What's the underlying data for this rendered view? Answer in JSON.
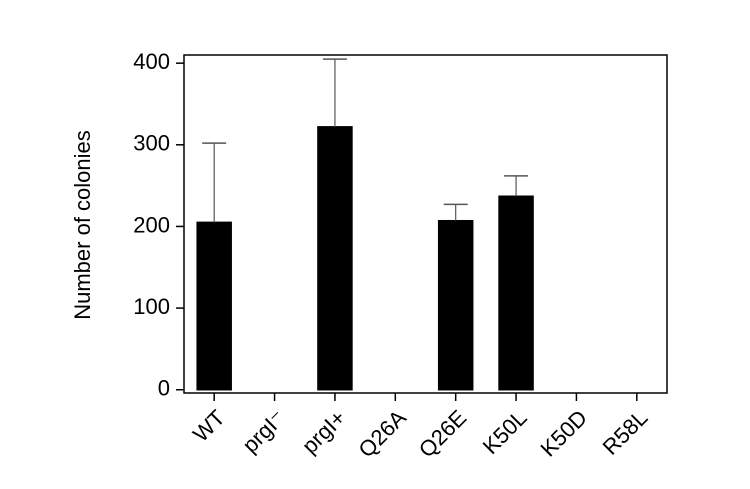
{
  "chart_data": {
    "type": "bar",
    "y_label": "Number of colonies",
    "categories": [
      "WT",
      "prgI⁻",
      "prgI+",
      "Q26A",
      "Q26E",
      "K50L",
      "K50D",
      "R58L"
    ],
    "values": [
      205,
      0,
      322,
      0,
      207,
      237,
      0,
      0
    ],
    "errors": [
      97,
      0,
      83,
      0,
      20,
      25,
      0,
      0
    ],
    "color": "#000000",
    "ylim": [
      -4,
      410
    ],
    "yticks": [
      0,
      100,
      200,
      300,
      400
    ],
    "grid": false
  }
}
